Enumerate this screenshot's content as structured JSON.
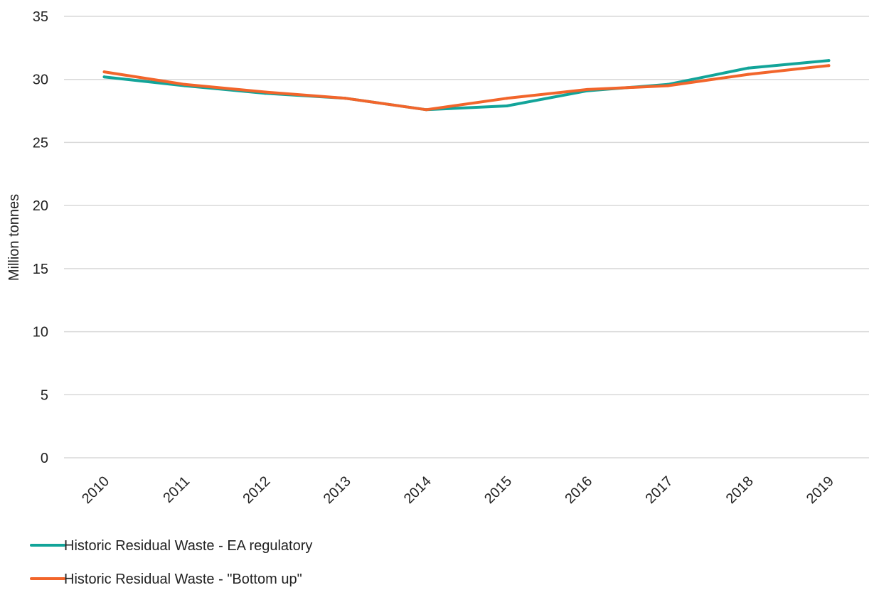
{
  "chart_data": {
    "type": "line",
    "ylabel": "Million tonnes",
    "xlabel": "",
    "ylim": [
      0,
      35
    ],
    "yticks": [
      0,
      5,
      10,
      15,
      20,
      25,
      30,
      35
    ],
    "categories": [
      "2010",
      "2011",
      "2012",
      "2013",
      "2014",
      "2015",
      "2016",
      "2017",
      "2018",
      "2019"
    ],
    "grid": "horizontal",
    "legend_position": "bottom-left",
    "series": [
      {
        "name": "Historic Residual Waste - EA regulatory",
        "color": "#12a499",
        "values": [
          30.2,
          29.5,
          28.9,
          28.5,
          27.6,
          27.9,
          29.1,
          29.6,
          30.9,
          31.5
        ]
      },
      {
        "name": "Historic Residual Waste - \"Bottom up\"",
        "color": "#f2652b",
        "values": [
          30.6,
          29.6,
          29.0,
          28.5,
          27.6,
          28.5,
          29.2,
          29.5,
          30.4,
          31.1
        ]
      }
    ]
  }
}
